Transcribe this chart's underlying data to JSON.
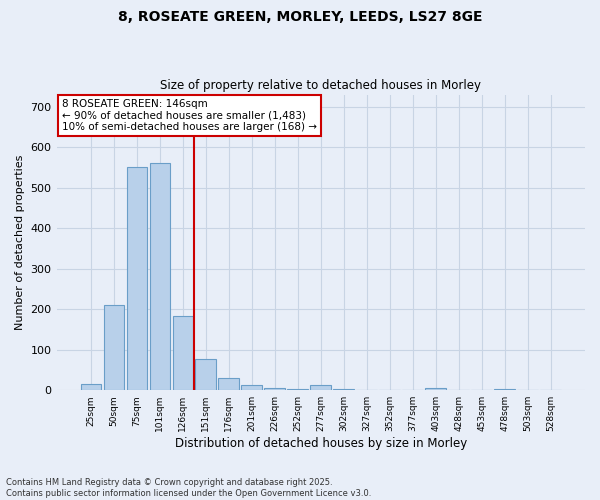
{
  "title_line1": "8, ROSEATE GREEN, MORLEY, LEEDS, LS27 8GE",
  "title_line2": "Size of property relative to detached houses in Morley",
  "xlabel": "Distribution of detached houses by size in Morley",
  "ylabel": "Number of detached properties",
  "categories": [
    "25sqm",
    "50sqm",
    "75sqm",
    "101sqm",
    "126sqm",
    "151sqm",
    "176sqm",
    "201sqm",
    "226sqm",
    "252sqm",
    "277sqm",
    "302sqm",
    "327sqm",
    "352sqm",
    "377sqm",
    "403sqm",
    "428sqm",
    "453sqm",
    "478sqm",
    "503sqm",
    "528sqm"
  ],
  "values": [
    15,
    210,
    550,
    560,
    183,
    78,
    30,
    14,
    5,
    4,
    12,
    3,
    1,
    0,
    0,
    5,
    0,
    0,
    4,
    0,
    0
  ],
  "bar_color": "#b8d0ea",
  "bar_edge_color": "#6a9ec8",
  "grid_color": "#c8d4e4",
  "background_color": "#e8eef8",
  "vline_x": 4.5,
  "vline_color": "#cc0000",
  "annotation_text": "8 ROSEATE GREEN: 146sqm\n← 90% of detached houses are smaller (1,483)\n10% of semi-detached houses are larger (168) →",
  "annotation_box_color": "#ffffff",
  "annotation_box_edge": "#cc0000",
  "ylim": [
    0,
    730
  ],
  "yticks": [
    0,
    100,
    200,
    300,
    400,
    500,
    600,
    700
  ],
  "footer_line1": "Contains HM Land Registry data © Crown copyright and database right 2025.",
  "footer_line2": "Contains public sector information licensed under the Open Government Licence v3.0."
}
